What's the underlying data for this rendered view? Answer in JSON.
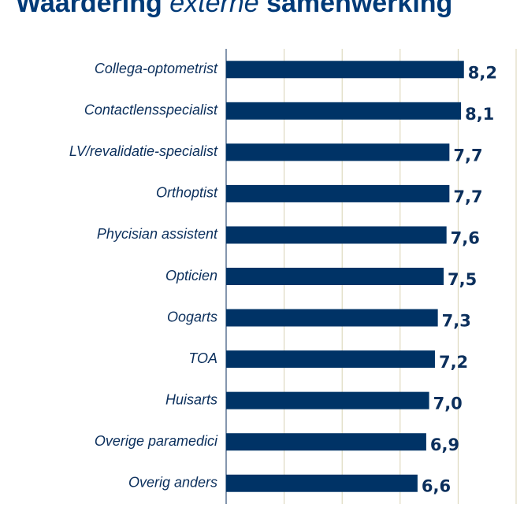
{
  "chart_data": {
    "type": "barh",
    "title": {
      "bold_1": "Waardering",
      "italic": "externe",
      "bold_2": "samenwerking"
    },
    "categories": [
      "Collega-optometrist",
      "Contactlensspecialist",
      "LV/revalidatie-specialist",
      "Orthoptist",
      "Phycisian assistent",
      "Opticien",
      "Oogarts",
      "TOA",
      "Huisarts",
      "Overige paramedici",
      "Overig anders"
    ],
    "values": [
      8.2,
      8.1,
      7.7,
      7.7,
      7.6,
      7.5,
      7.3,
      7.2,
      7.0,
      6.9,
      6.6
    ],
    "value_labels": [
      "8,2",
      "8,1",
      "7,7",
      "7,7",
      "7,6",
      "7,5",
      "7,3",
      "7,2",
      "7,0",
      "6,9",
      "6,6"
    ],
    "color": "#003366",
    "xlim": [
      0,
      10
    ],
    "xticks": [
      0,
      2,
      4,
      6,
      8,
      10
    ],
    "grid": true
  }
}
